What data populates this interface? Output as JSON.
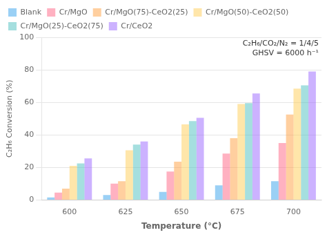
{
  "chart_data": {
    "type": "bar",
    "xlabel": "Temperature (°C)",
    "ylabel": "C₂H₆ Conversion (%)",
    "annotations": [
      "C₂H₆/CO₂/N₂ = 1/4/5",
      "GHSV = 6000 h⁻¹"
    ],
    "categories": [
      "600",
      "625",
      "650",
      "675",
      "700"
    ],
    "series": [
      {
        "name": "Blank",
        "values": [
          1.5,
          3.0,
          5.0,
          9.0,
          11.5
        ]
      },
      {
        "name": "Cr/MgO",
        "values": [
          4.5,
          10.0,
          17.5,
          28.5,
          35.0
        ]
      },
      {
        "name": "Cr/MgO(75)-CeO2(25)",
        "values": [
          7.0,
          11.5,
          23.5,
          38.0,
          52.5
        ]
      },
      {
        "name": "Cr/MgO(50)-CeO2(50)",
        "values": [
          21.0,
          30.5,
          46.5,
          59.0,
          68.5
        ]
      },
      {
        "name": "Cr/MgO(25)-CeO2(75)",
        "values": [
          22.5,
          34.0,
          48.5,
          59.5,
          70.5
        ]
      },
      {
        "name": "Cr/CeO2",
        "values": [
          25.5,
          36.0,
          50.5,
          65.5,
          79.0
        ]
      }
    ],
    "ylim": [
      0,
      100
    ],
    "yticks": [
      0,
      20,
      40,
      60,
      80,
      100
    ],
    "grid": true,
    "legend": "upper left"
  }
}
